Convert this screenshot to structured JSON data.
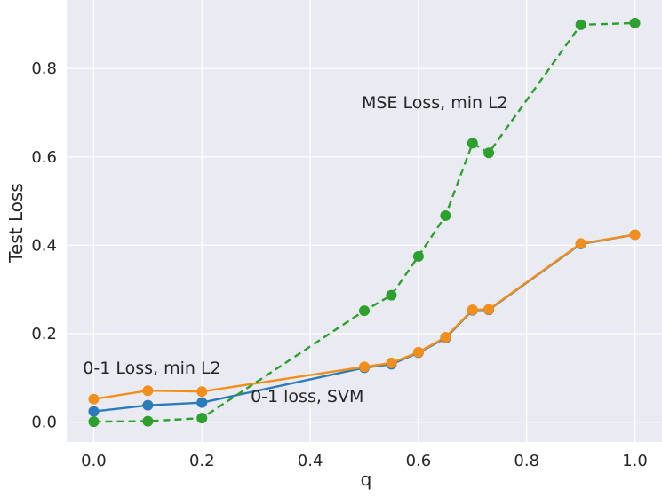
{
  "chart_data": {
    "type": "line",
    "title": "",
    "xlabel": "q",
    "ylabel": "Test Loss",
    "xlim": [
      -0.05,
      1.05
    ],
    "ylim": [
      -0.045,
      0.955
    ],
    "xticks": [
      "0.0",
      "0.2",
      "0.4",
      "0.6",
      "0.8",
      "1.0"
    ],
    "xtick_values": [
      0.0,
      0.2,
      0.4,
      0.6,
      0.8,
      1.0
    ],
    "yticks": [
      "0.0",
      "0.2",
      "0.4",
      "0.6",
      "0.8"
    ],
    "ytick_values": [
      0.0,
      0.2,
      0.4,
      0.6,
      0.8
    ],
    "grid": true,
    "background": "#eaeaf2",
    "grid_color": "#ffffff",
    "series": [
      {
        "color": "#2b7bba",
        "linestyle": "solid",
        "x": [
          0.0,
          0.1,
          0.2,
          0.5,
          0.55,
          0.6,
          0.65,
          0.7,
          0.73,
          0.9,
          1.0
        ],
        "y": [
          0.024,
          0.038,
          0.044,
          0.123,
          0.131,
          0.157,
          0.19,
          0.253,
          0.254,
          0.403,
          0.424
        ]
      },
      {
        "color": "#f28e1c",
        "linestyle": "solid",
        "x": [
          0.0,
          0.1,
          0.2,
          0.5,
          0.55,
          0.6,
          0.65,
          0.7,
          0.73,
          0.9,
          1.0
        ],
        "y": [
          0.052,
          0.071,
          0.069,
          0.125,
          0.134,
          0.158,
          0.192,
          0.254,
          0.255,
          0.404,
          0.424
        ]
      },
      {
        "color": "#2ca02c",
        "linestyle": "dashed",
        "x": [
          0.0,
          0.1,
          0.2,
          0.5,
          0.55,
          0.6,
          0.65,
          0.7,
          0.73,
          0.9,
          1.0
        ],
        "y": [
          0.001,
          0.002,
          0.009,
          0.252,
          0.287,
          0.375,
          0.467,
          0.631,
          0.609,
          0.899,
          0.903
        ]
      }
    ],
    "annotations": [
      {
        "text": "MSE Loss, min L2",
        "x": 0.495,
        "y": 0.71
      },
      {
        "text": "0-1 Loss, min L2",
        "x": -0.02,
        "y": 0.11
      },
      {
        "text": "0-1 loss, SVM",
        "x": 0.29,
        "y": 0.045
      }
    ]
  }
}
